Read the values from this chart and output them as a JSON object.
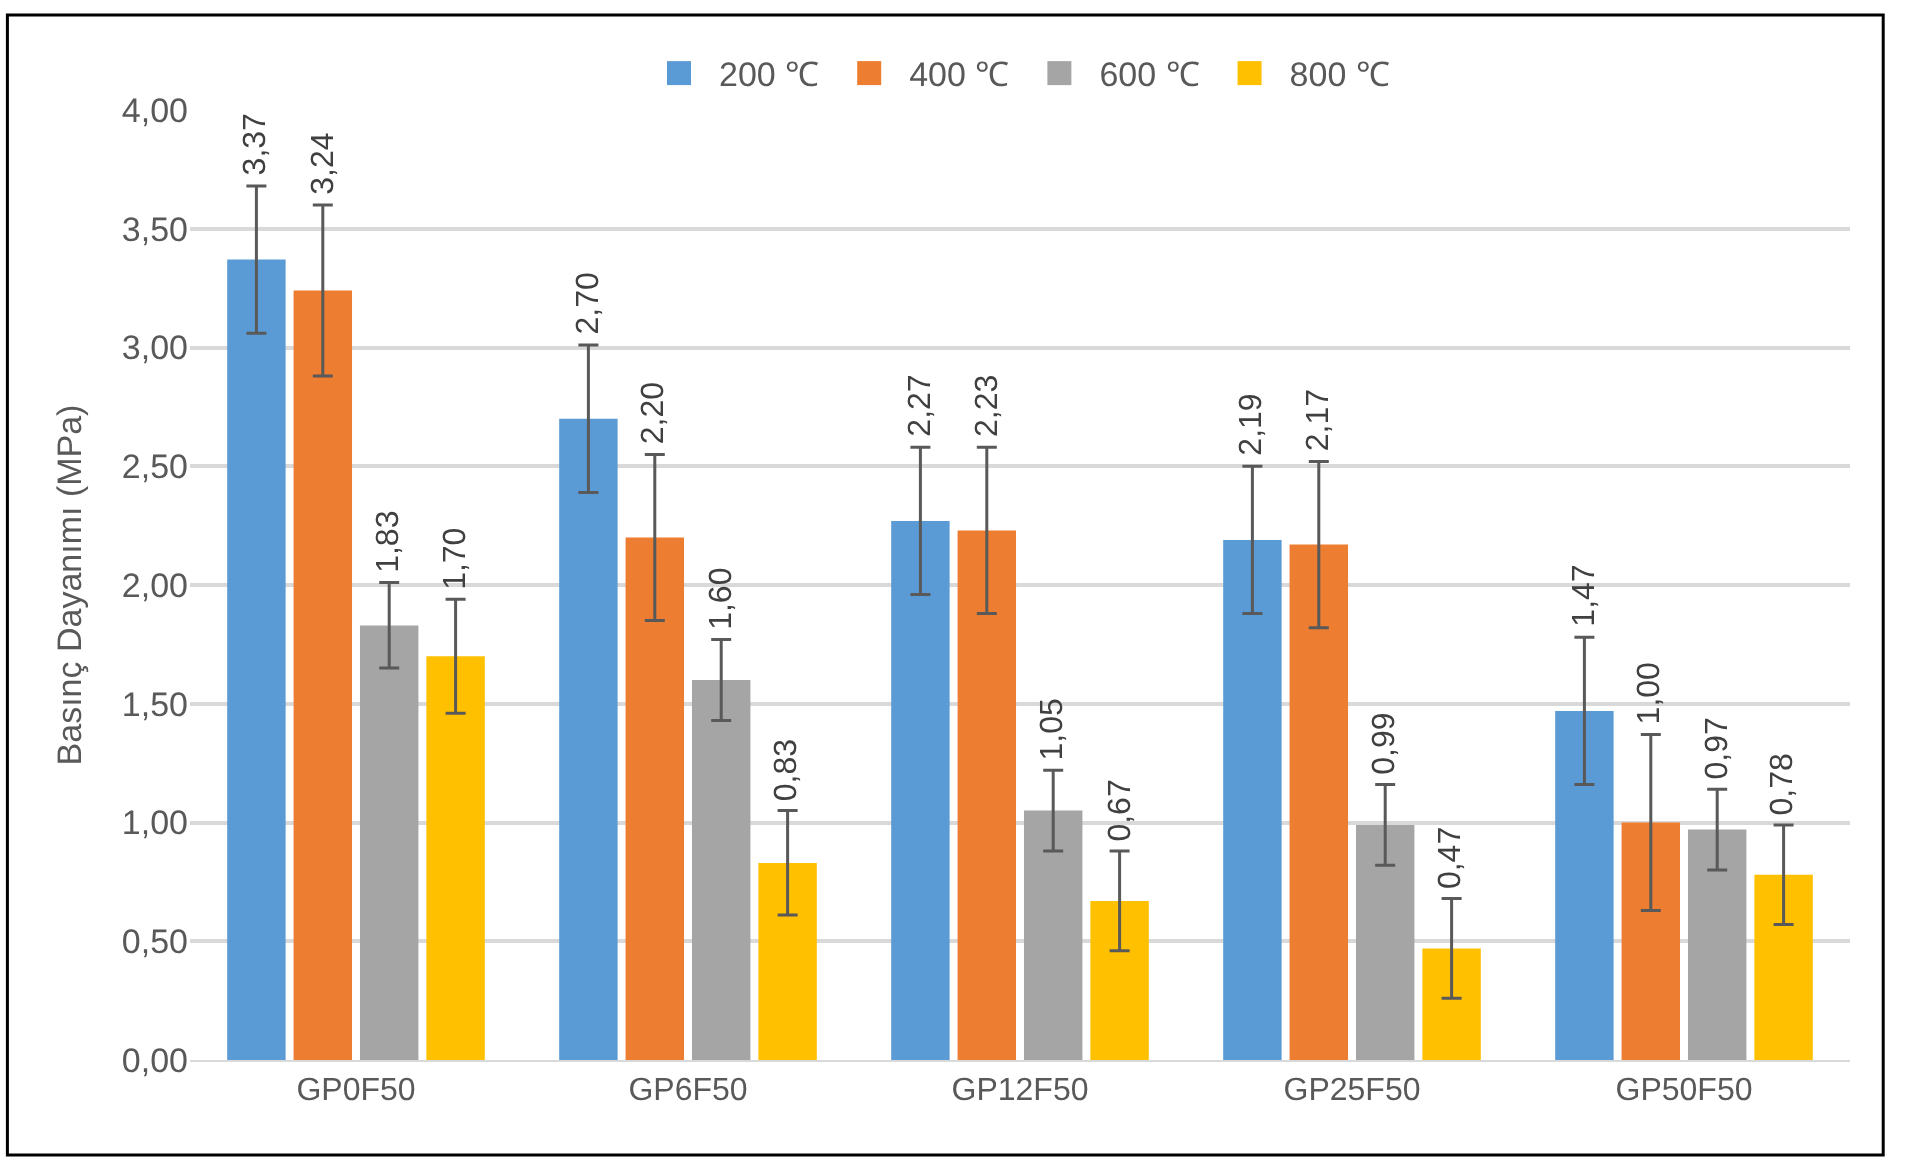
{
  "chart_data": {
    "type": "bar",
    "ylabel": "Basınç Dayanımı (MPa)",
    "categories": [
      "GP0F50",
      "GP6F50",
      "GP12F50",
      "GP25F50",
      "GP50F50"
    ],
    "series": [
      {
        "name": "200 ℃",
        "color": "#5b9bd5",
        "values": [
          3.37,
          2.7,
          2.27,
          2.19,
          1.47
        ],
        "errors": [
          0.31,
          0.31,
          0.31,
          0.31,
          0.31
        ],
        "value_labels": [
          "3,37",
          "2,70",
          "2,27",
          "2,19",
          "1,47"
        ]
      },
      {
        "name": "400 ℃",
        "color": "#ed7d31",
        "values": [
          3.24,
          2.2,
          2.23,
          2.17,
          1.0
        ],
        "errors": [
          0.36,
          0.35,
          0.35,
          0.35,
          0.37
        ],
        "value_labels": [
          "3,24",
          "2,20",
          "2,23",
          "2,17",
          "1,00"
        ]
      },
      {
        "name": "600 ℃",
        "color": "#a5a5a5",
        "values": [
          1.83,
          1.6,
          1.05,
          0.99,
          0.97
        ],
        "errors": [
          0.18,
          0.17,
          0.17,
          0.17,
          0.17
        ],
        "value_labels": [
          "1,83",
          "1,60",
          "1,05",
          "0,99",
          "0,97"
        ]
      },
      {
        "name": "800 ℃",
        "color": "#ffc000",
        "values": [
          1.7,
          0.83,
          0.67,
          0.47,
          0.78
        ],
        "errors": [
          0.24,
          0.22,
          0.21,
          0.21,
          0.21
        ],
        "value_labels": [
          "1,70",
          "0,83",
          "0,67",
          "0,47",
          "0,78"
        ]
      }
    ],
    "ylim": [
      0,
      4.0
    ],
    "yticks": [
      {
        "value": 0,
        "label": "0,00"
      },
      {
        "value": 0.5,
        "label": "0,50"
      },
      {
        "value": 1.0,
        "label": "1,00"
      },
      {
        "value": 1.5,
        "label": "1,50"
      },
      {
        "value": 2.0,
        "label": "2,00"
      },
      {
        "value": 2.5,
        "label": "2,50"
      },
      {
        "value": 3.0,
        "label": "3,00"
      },
      {
        "value": 3.5,
        "label": "3,50"
      },
      {
        "value": 4.0,
        "label": "4,00"
      }
    ],
    "grid": "y",
    "legend": "top"
  }
}
